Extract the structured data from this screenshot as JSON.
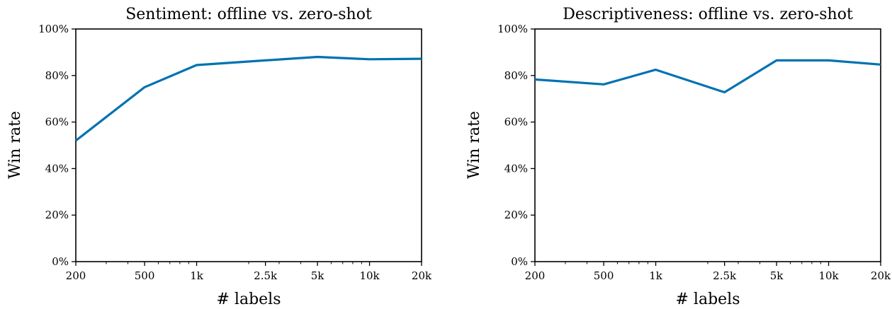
{
  "chart_data": [
    {
      "type": "line",
      "title": "Sentiment: offline vs. zero-shot",
      "xlabel": "# labels",
      "ylabel": "Win rate",
      "xscale": "log",
      "xlim": [
        200,
        20000
      ],
      "ylim": [
        0,
        100
      ],
      "x_ticks": [
        200,
        500,
        1000,
        2500,
        5000,
        10000,
        20000
      ],
      "x_tick_labels": [
        "200",
        "500",
        "1k",
        "2.5k",
        "5k",
        "10k",
        "20k"
      ],
      "y_ticks": [
        0,
        20,
        40,
        60,
        80,
        100
      ],
      "y_tick_labels": [
        "0%",
        "20%",
        "40%",
        "60%",
        "80%",
        "100%"
      ],
      "grid": false,
      "line_color": "#0072b2",
      "series": [
        {
          "x": [
            200,
            500,
            1000,
            2500,
            5000,
            10000,
            20000
          ],
          "y": [
            52,
            75,
            84.5,
            86.5,
            88,
            87,
            87.2
          ]
        }
      ]
    },
    {
      "type": "line",
      "title": "Descriptiveness: offline vs. zero-shot",
      "xlabel": "# labels",
      "ylabel": "Win rate",
      "xscale": "log",
      "xlim": [
        200,
        20000
      ],
      "ylim": [
        0,
        100
      ],
      "x_ticks": [
        200,
        500,
        1000,
        2500,
        5000,
        10000,
        20000
      ],
      "x_tick_labels": [
        "200",
        "500",
        "1k",
        "2.5k",
        "5k",
        "10k",
        "20k"
      ],
      "y_ticks": [
        0,
        20,
        40,
        60,
        80,
        100
      ],
      "y_tick_labels": [
        "0%",
        "20%",
        "40%",
        "60%",
        "80%",
        "100%"
      ],
      "grid": false,
      "line_color": "#0072b2",
      "series": [
        {
          "x": [
            200,
            500,
            1000,
            2500,
            5000,
            10000,
            20000
          ],
          "y": [
            78.3,
            76.2,
            82.5,
            72.8,
            86.5,
            86.5,
            84.7
          ]
        }
      ]
    }
  ]
}
